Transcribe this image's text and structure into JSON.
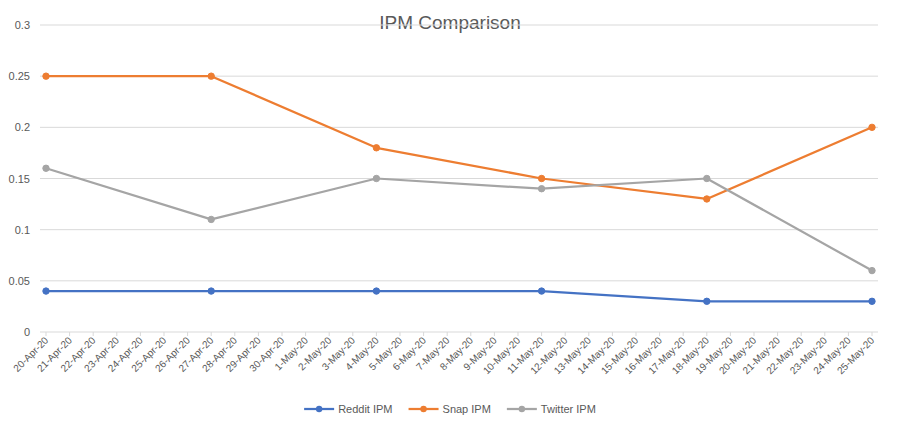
{
  "chart_data": {
    "type": "line",
    "title": "IPM Comparison",
    "x": [
      "20-Apr-20",
      "27-Apr-20",
      "4-May-20",
      "11-May-20",
      "18-May-20",
      "25-May-20"
    ],
    "xticks": [
      "20-Apr-20",
      "21-Apr-20",
      "22-Apr-20",
      "23-Apr-20",
      "24-Apr-20",
      "25-Apr-20",
      "26-Apr-20",
      "27-Apr-20",
      "28-Apr-20",
      "29-Apr-20",
      "30-Apr-20",
      "1-May-20",
      "2-May-20",
      "3-May-20",
      "4-May-20",
      "5-May-20",
      "6-May-20",
      "7-May-20",
      "8-May-20",
      "9-May-20",
      "10-May-20",
      "11-May-20",
      "12-May-20",
      "13-May-20",
      "14-May-20",
      "15-May-20",
      "16-May-20",
      "17-May-20",
      "18-May-20",
      "19-May-20",
      "20-May-20",
      "21-May-20",
      "22-May-20",
      "23-May-20",
      "24-May-20",
      "25-May-20"
    ],
    "series": [
      {
        "name": "Reddit IPM",
        "color": "#4472c4",
        "marker": "circle",
        "values": [
          0.04,
          0.04,
          0.04,
          0.04,
          0.03,
          0.03
        ]
      },
      {
        "name": "Snap IPM",
        "color": "#ed7d31",
        "marker": "circle",
        "values": [
          0.25,
          0.25,
          0.18,
          0.15,
          0.13,
          0.2
        ]
      },
      {
        "name": "Twitter IPM",
        "color": "#a5a5a5",
        "marker": "circle",
        "values": [
          0.16,
          0.11,
          0.15,
          0.14,
          0.15,
          0.06
        ]
      }
    ],
    "ylim": [
      0,
      0.3
    ],
    "yticks": [
      0,
      0.05,
      0.1,
      0.15,
      0.2,
      0.25,
      0.3
    ],
    "grid": true,
    "legend": "bottom"
  }
}
